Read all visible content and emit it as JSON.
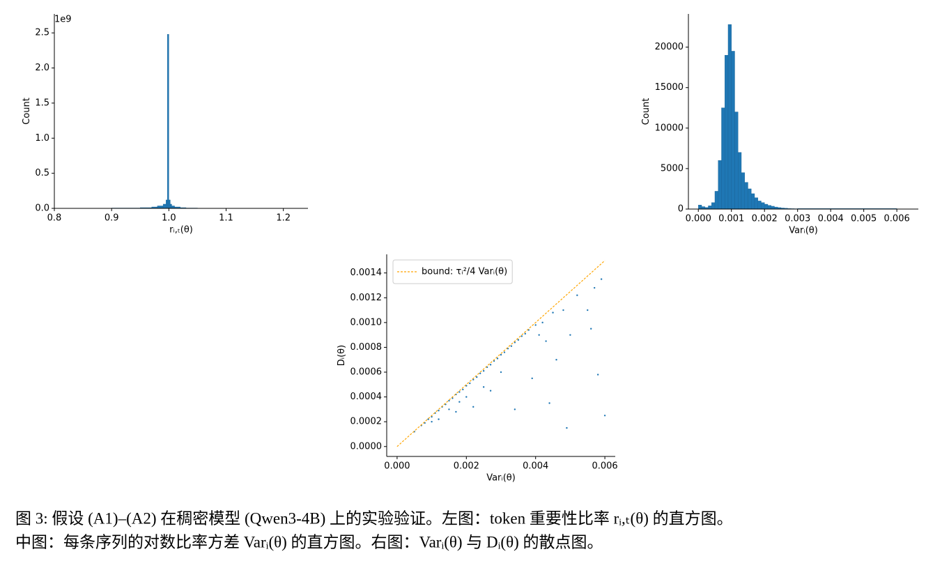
{
  "chart_data": [
    {
      "type": "histogram",
      "xlabel": "rᵢ,ₜ(θ)",
      "ylabel": "Count",
      "y_offset_label": "1e9",
      "color": "#1f77b4",
      "bins": [
        0.8,
        0.9,
        0.95,
        0.97,
        0.98,
        0.99,
        0.995,
        0.9975,
        1.0,
        1.0025,
        1.005,
        1.01,
        1.02,
        1.03,
        1.05,
        1.1,
        1.24
      ],
      "values": [
        1000000,
        5000000,
        10000000,
        20000000,
        35000000,
        60000000,
        120000000,
        2480000000,
        120000000,
        60000000,
        35000000,
        20000000,
        10000000,
        5000000,
        2000000,
        500000
      ],
      "xlim": [
        0.8,
        1.243
      ],
      "ylim": [
        0,
        2770000000
      ],
      "xticks": [
        0.8,
        0.9,
        {
          "value": 1,
          "label": "1.0"
        },
        1.1,
        1.2
      ],
      "yticks": [
        {
          "value": 0,
          "label": "0.0"
        },
        {
          "value": 500000000,
          "label": "0.5"
        },
        {
          "value": 1000000000,
          "label": "1.0"
        },
        {
          "value": 1500000000,
          "label": "1.5"
        },
        {
          "value": 2000000000,
          "label": "2.0"
        },
        {
          "value": 2500000000,
          "label": "2.5"
        }
      ]
    },
    {
      "type": "histogram",
      "xlabel": "Varᵢ(θ)",
      "ylabel": "Count",
      "color": "#1f77b4",
      "bins": [
        0,
        0.0001,
        0.0002,
        0.0003,
        0.0004,
        0.0005,
        0.0006,
        0.0007,
        0.0008,
        0.0009,
        0.001,
        0.0011,
        0.0012,
        0.0013,
        0.0014,
        0.0015,
        0.0016,
        0.0017,
        0.0018,
        0.0019,
        0.002,
        0.0021,
        0.0022,
        0.0023,
        0.0024,
        0.0025,
        0.0026,
        0.0027,
        0.0028,
        0.0029,
        0.003,
        0.006
      ],
      "values": [
        500,
        300,
        200,
        400,
        800,
        2200,
        6000,
        12500,
        19000,
        22800,
        19500,
        12000,
        7000,
        4500,
        3300,
        2500,
        1900,
        1400,
        1000,
        800,
        600,
        450,
        350,
        250,
        180,
        130,
        100,
        70,
        50,
        40,
        60
      ],
      "xlim": [
        -0.0003,
        0.00665
      ],
      "ylim": [
        0,
        24100
      ],
      "xticks": [
        {
          "value": 0,
          "label": "0.000"
        },
        0.001,
        0.002,
        0.003,
        0.004,
        0.005,
        0.006
      ],
      "yticks": [
        0,
        5000,
        10000,
        15000,
        20000
      ]
    },
    {
      "type": "scatter",
      "xlabel": "Varᵢ(θ)",
      "ylabel": "Dᵢ(θ)",
      "legend": "upper left",
      "series": [
        {
          "color": "#1f77b4",
          "x": [
            0.0005,
            0.0007,
            0.0008,
            0.0009,
            0.001,
            0.001,
            0.0011,
            0.0012,
            0.0012,
            0.0013,
            0.0014,
            0.0015,
            0.0015,
            0.0016,
            0.0017,
            0.0018,
            0.0018,
            0.0019,
            0.002,
            0.002,
            0.0021,
            0.0022,
            0.0023,
            0.0024,
            0.0025,
            0.0025,
            0.0026,
            0.0027,
            0.0028,
            0.0029,
            0.003,
            0.003,
            0.0031,
            0.0032,
            0.0033,
            0.0034,
            0.0035,
            0.0036,
            0.0037,
            0.0038,
            0.004,
            0.0041,
            0.0042,
            0.0043,
            0.0045,
            0.0046,
            0.0048,
            0.005,
            0.0052,
            0.0055,
            0.0057,
            0.0058,
            0.0059,
            0.006,
            0.0056,
            0.0049,
            0.0044,
            0.0039,
            0.0034,
            0.0027,
            0.0022,
            0.0017
          ],
          "values": [
            0.00012,
            0.00017,
            0.00019,
            0.00022,
            0.00024,
            0.0002,
            0.00027,
            0.00029,
            0.00022,
            0.00032,
            0.00034,
            0.00037,
            0.0003,
            0.00039,
            0.00042,
            0.00044,
            0.00036,
            0.00046,
            0.00049,
            0.0004,
            0.00051,
            0.00054,
            0.00056,
            0.00059,
            0.00061,
            0.00048,
            0.00064,
            0.00066,
            0.00069,
            0.00071,
            0.00074,
            0.0006,
            0.00076,
            0.00079,
            0.00081,
            0.00084,
            0.00086,
            0.00089,
            0.00091,
            0.00094,
            0.00098,
            0.0009,
            0.001,
            0.00085,
            0.00108,
            0.0007,
            0.0011,
            0.0009,
            0.00122,
            0.0011,
            0.00128,
            0.00058,
            0.00135,
            0.00025,
            0.00095,
            0.00015,
            0.00035,
            0.00055,
            0.0003,
            0.00045,
            0.00032,
            0.00028
          ]
        },
        {
          "name": "bound: τᵢ²/4 Varᵢ(θ)",
          "kind": "dashed-line",
          "color": "orange",
          "x": [
            0,
            0.006
          ],
          "values": [
            0,
            0.0015
          ]
        }
      ],
      "xlim": [
        -0.0003,
        0.0063
      ],
      "ylim": [
        -8e-05,
        0.00155
      ],
      "xticks": [
        {
          "value": 0,
          "label": "0.000"
        },
        0.002,
        0.004,
        0.006
      ],
      "yticks": [
        {
          "value": 0,
          "label": "0.0000"
        },
        0.0002,
        0.0004,
        0.0006,
        0.0008,
        {
          "value": 0.001,
          "label": "0.0010"
        },
        0.0012,
        0.0014
      ]
    }
  ],
  "caption": [
    "图 3: 假设 (A1)–(A2) 在稠密模型 (Qwen3-4B) 上的实验验证。左图：token 重要性比率 rᵢ,ₜ(θ) 的直方图。",
    "中图：每条序列的对数比率方差 Varᵢ(θ) 的直方图。右图：Varᵢ(θ) 与 Dᵢ(θ) 的散点图。"
  ]
}
